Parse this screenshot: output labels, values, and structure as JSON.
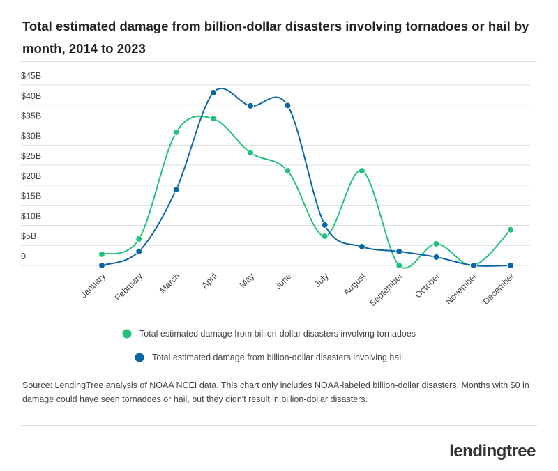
{
  "chart_data": {
    "type": "line",
    "title": "Total estimated damage from billion-dollar disasters involving tornadoes or hail by month, 2014 to 2023",
    "categories": [
      "January",
      "February",
      "March",
      "April",
      "May",
      "June",
      "July",
      "August",
      "September",
      "October",
      "November",
      "December"
    ],
    "series": [
      {
        "name": "Total estimated damage from billion-dollar disasters involving tornadoes",
        "color": "#22c27d",
        "values": [
          2.8,
          6.6,
          33.2,
          36.6,
          28.1,
          23.6,
          7.3,
          23.6,
          0,
          5.4,
          0,
          8.9
        ]
      },
      {
        "name": "Total estimated damage from billion-dollar disasters involving hail",
        "color": "#0c66a6",
        "values": [
          0,
          3.5,
          18.9,
          43.1,
          39.8,
          39.9,
          10.1,
          4.7,
          3.5,
          2.1,
          0,
          0
        ]
      }
    ],
    "ylim": [
      0,
      45
    ],
    "yticks": [
      0,
      {
        "value": 5,
        "label": "$5B"
      },
      {
        "value": 10,
        "label": "$10B"
      },
      {
        "value": 15,
        "label": "$15B"
      },
      {
        "value": 20,
        "label": "$20B"
      },
      {
        "value": 25,
        "label": "$25B"
      },
      {
        "value": 30,
        "label": "$30B"
      },
      {
        "value": 35,
        "label": "$35B"
      },
      {
        "value": 40,
        "label": "$40B"
      },
      {
        "value": 45,
        "label": "$45B"
      }
    ],
    "grid": true,
    "smooth": true
  },
  "source": "Source: LendingTree analysis of NOAA NCEI data. This chart only includes NOAA-labeled billion-dollar disasters. Months with $0 in damage could have seen tornadoes or hail, but they didn't result in billion-dollar disasters.",
  "logo": "lendingtree"
}
